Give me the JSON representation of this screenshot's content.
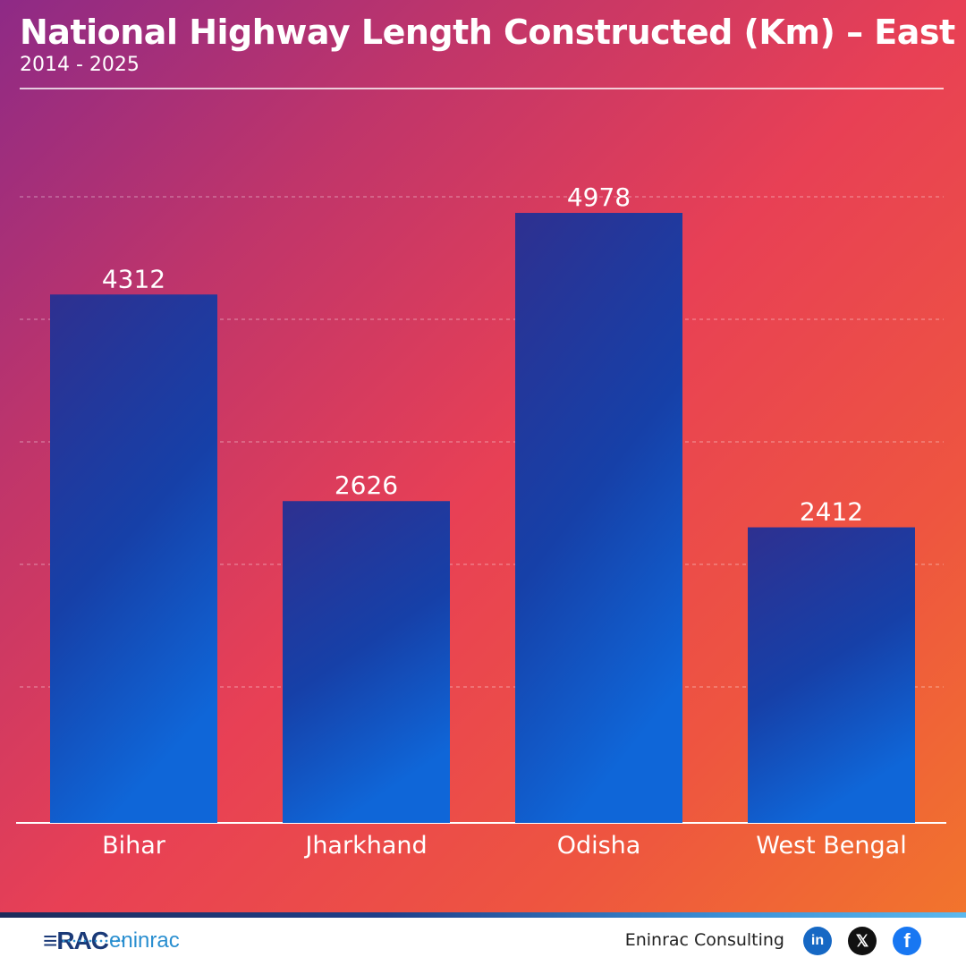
{
  "header": {
    "title": "National Highway Length Constructed (Km) – East India",
    "subtitle": "2014 - 2025"
  },
  "chart_data": {
    "type": "bar",
    "categories": [
      "Bihar",
      "Jharkhand",
      "Odisha",
      "West Bengal"
    ],
    "values": [
      4312,
      2626,
      4978,
      2412
    ],
    "ylim": [
      0,
      5500
    ],
    "grid": true,
    "bar_color_top": "#2a2f92",
    "bar_color_bottom": "#0f6fd8"
  },
  "footer": {
    "logo": "RAC eninrac",
    "brand": "Eninrac Consulting",
    "social": [
      "linkedin-icon",
      "x-icon",
      "facebook-icon"
    ]
  },
  "colors": {
    "gradient": [
      "#8e2a86",
      "#e84055",
      "#f2782a"
    ],
    "accent": "#1b3a78"
  }
}
